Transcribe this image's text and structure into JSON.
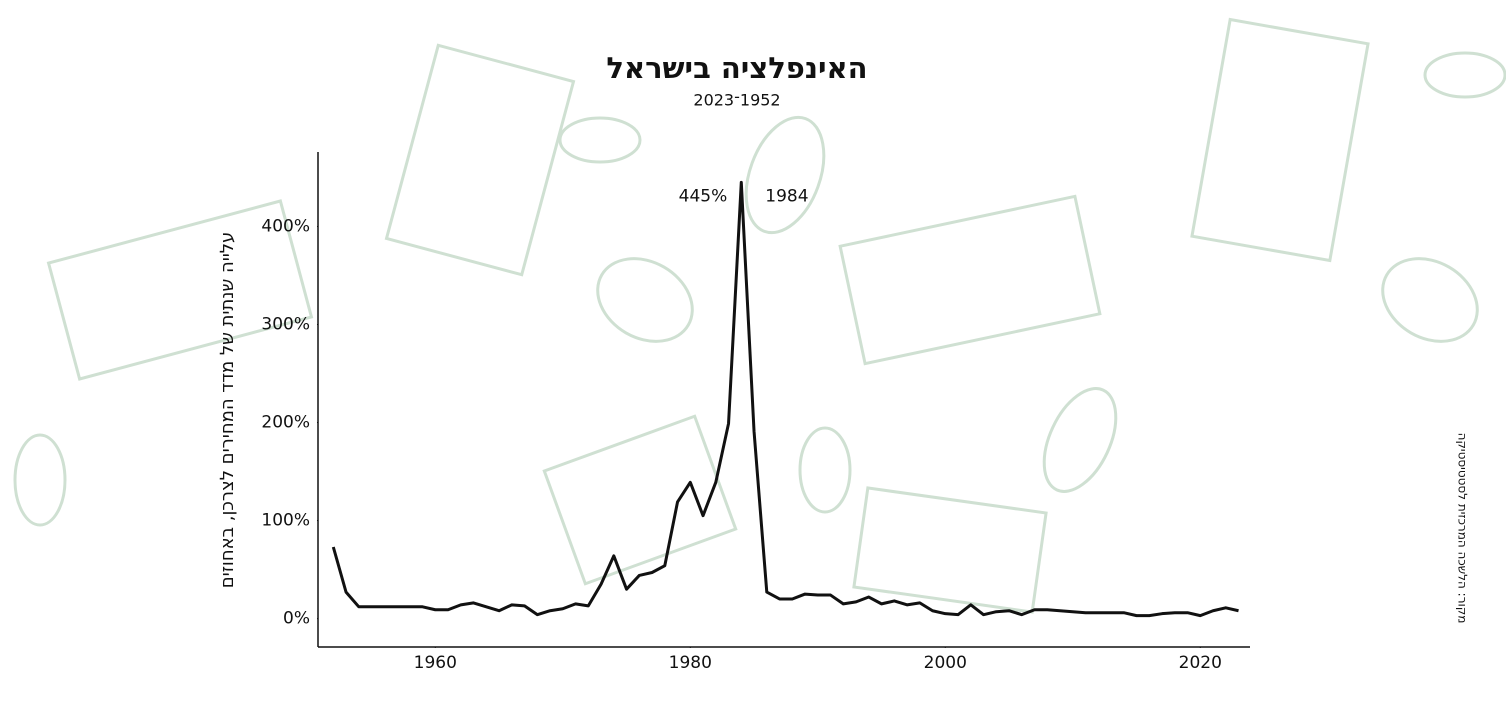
{
  "chart_data": {
    "type": "line",
    "title": "האינפלציה בישראל",
    "subtitle": "1952־2023",
    "y_label": "עלייה שנתית של מדד המחירים לצרכן, באחוזים",
    "source": "מקור: הלשכה המרכזית לסטטיסטיקה",
    "x": [
      1952,
      1953,
      1954,
      1955,
      1956,
      1957,
      1958,
      1959,
      1960,
      1961,
      1962,
      1963,
      1964,
      1965,
      1966,
      1967,
      1968,
      1969,
      1970,
      1971,
      1972,
      1973,
      1974,
      1975,
      1976,
      1977,
      1978,
      1979,
      1980,
      1981,
      1982,
      1983,
      1984,
      1985,
      1986,
      1987,
      1988,
      1989,
      1990,
      1991,
      1992,
      1993,
      1994,
      1995,
      1996,
      1997,
      1998,
      1999,
      2000,
      2001,
      2002,
      2003,
      2004,
      2005,
      2006,
      2007,
      2008,
      2009,
      2010,
      2011,
      2012,
      2013,
      2014,
      2015,
      2016,
      2017,
      2018,
      2019,
      2020,
      2021,
      2022,
      2023
    ],
    "series": [
      {
        "color": "#111111",
        "values": [
          73,
          27,
          12,
          12,
          12,
          12,
          12,
          12,
          9,
          9,
          14,
          16,
          12,
          8,
          14,
          13,
          4,
          8,
          10,
          15,
          13,
          35,
          64,
          30,
          44,
          47,
          54,
          119,
          139,
          105,
          139,
          199,
          445,
          191,
          27,
          20,
          20,
          25,
          24,
          24,
          15,
          17,
          22,
          15,
          18,
          14,
          16,
          8,
          5,
          4,
          14,
          4,
          7,
          8,
          4,
          9,
          9,
          8,
          7,
          6,
          6,
          6,
          6,
          3,
          3,
          5,
          6,
          6,
          3,
          8,
          11,
          8
        ]
      }
    ],
    "annotation": {
      "x": 1984,
      "y": 445,
      "value_label": "445%",
      "year_label": "1984"
    },
    "xlim": [
      1950.8,
      2023.9
    ],
    "xticks": [
      1960,
      1980,
      2000,
      2020
    ],
    "ylim": [
      -29,
      476
    ],
    "yticks": [
      {
        "value": 0,
        "label": "0%"
      },
      {
        "value": 100,
        "label": "100%"
      },
      {
        "value": 200,
        "label": "200%"
      },
      {
        "value": 300,
        "label": "300%"
      },
      {
        "value": 400,
        "label": "400%"
      }
    ]
  }
}
